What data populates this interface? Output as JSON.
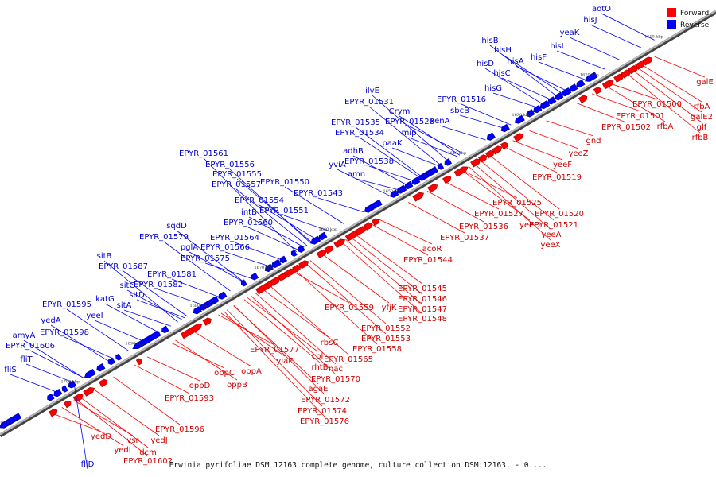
{
  "caption": "Erwinia pyrifoliae DSM 12163 complete genome, culture collection DSM:12163. - 0....",
  "legend": [
    {
      "label": "Forward",
      "color": "#ff0000"
    },
    {
      "label": "Reverse",
      "color": "#0000ff"
    }
  ],
  "colors": {
    "forward": "#ff0000",
    "reverse": "#0000ff",
    "backbone": "#999999",
    "forward_label": "#cc0000",
    "reverse_label": "#0000cc"
  },
  "kbp_ticks": [
    "1610 kbp",
    "1620 kbp",
    "1630 kbp",
    "1640 kbp",
    "1650 kbp",
    "1660 kbp",
    "1670 kbp",
    "1680 kbp",
    "1690 kbp",
    "1700 kbp",
    "1710 kbp"
  ],
  "reverse_labels": [
    "aotO",
    "hisJ",
    "yeaK",
    "hisI",
    "hisB",
    "hisH",
    "hisF",
    "hisA",
    "hisD",
    "hisC",
    "hisG",
    "EPYR_01516",
    "sbcB",
    "ilvE",
    "EPYR_01531",
    "Crym",
    "EPYR_01528",
    "EPYR_01535",
    "EPYR_01534",
    "mip",
    "xenA",
    "paaK",
    "adhB",
    "EPYR_01538",
    "yviA",
    "amn",
    "EPYR_01561",
    "EPYR_01556",
    "EPYR_01555",
    "EPYR_01557",
    "EPYR_01550",
    "EPYR_01543",
    "EPYR_01554",
    "intB",
    "EPYR_01551",
    "EPYR_01560",
    "sqdD",
    "EPYR_01579",
    "EPYR_01564",
    "pglA",
    "EPYR_01566",
    "sitB",
    "EPYR_01575",
    "EPYR_01587",
    "EPYR_01581",
    "sitC",
    "EPYR_01582",
    "sitD",
    "katG",
    "sitA",
    "EPYR_01595",
    "yedA",
    "yeeI",
    "EPYR_01598",
    "amyA",
    "EPYR_01606",
    "fliT",
    "fliS",
    "fliD"
  ],
  "forward_labels": [
    "galE",
    "rfbA",
    "galE2",
    "EPYR_01500",
    "EPYR_01501",
    "rfbA",
    "glf",
    "rfbB",
    "EPYR_01502",
    "gnd",
    "yeeZ",
    "yeeF",
    "EPYR_01519",
    "EPYR_01525",
    "EPYR_01520",
    "EPYR_01527",
    "EPYR_01521",
    "EPYR_01536",
    "yeeO",
    "yeeA",
    "EPYR_01537",
    "yeeX",
    "acoR",
    "EPYR_01544",
    "EPYR_01545",
    "EPYR_01546",
    "EPYR_01547",
    "EPYR_01548",
    "EPYR_01559",
    "yfjK",
    "EPYR_01552",
    "EPYR_01553",
    "rbsC",
    "EPYR_01558",
    "cbl",
    "EPYR_01565",
    "EPYR_01577",
    "rhtB",
    "yiaE",
    "nac",
    "EPYR_01570",
    "agaE",
    "EPYR_01572",
    "EPYR_01574",
    "EPYR_01576",
    "oppA",
    "oppC",
    "oppB",
    "oppD",
    "EPYR_01593",
    "EPYR_01596",
    "yedJ",
    "yedD",
    "vsr",
    "dcm",
    "yedI",
    "EPYR_01602"
  ]
}
